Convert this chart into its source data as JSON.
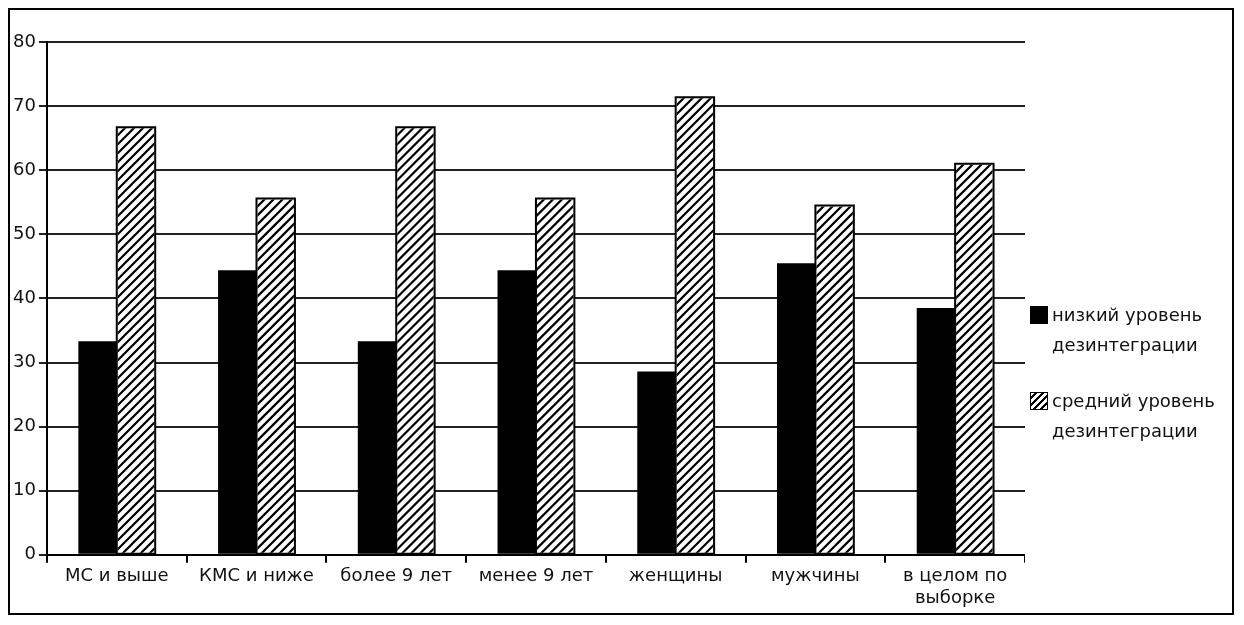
{
  "chart_data": {
    "type": "bar",
    "categories": [
      "МС и выше",
      "КМС и ниже",
      "более 9 лет",
      "менее 9 лет",
      "женщины",
      "мужчины",
      "в целом по выборке"
    ],
    "series": [
      {
        "name": "низкий уровень дезинтеграции",
        "color": "#000000",
        "values": [
          33.3,
          44.4,
          33.3,
          44.4,
          28.6,
          45.5,
          38.5
        ]
      },
      {
        "name": "средний уровень дезинтеграции",
        "color": "#ffffff",
        "values": [
          66.7,
          55.6,
          66.7,
          55.6,
          71.4,
          54.5,
          61
        ]
      }
    ],
    "ylim": [
      0,
      80
    ],
    "yticks": [
      0,
      10,
      20,
      30,
      40,
      50,
      60,
      70,
      80
    ],
    "grid": "y",
    "legend": "right"
  }
}
